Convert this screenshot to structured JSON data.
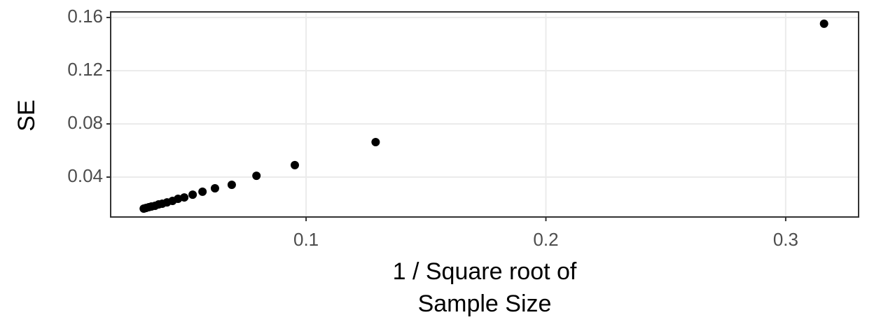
{
  "chart_data": {
    "type": "scatter",
    "xlabel": [
      "1 / Square root of",
      "Sample Size"
    ],
    "ylabel": "SE",
    "x": [
      0.316,
      0.129,
      0.0953,
      0.0793,
      0.069,
      0.062,
      0.0568,
      0.0527,
      0.0492,
      0.0466,
      0.0443,
      0.042,
      0.04,
      0.0385,
      0.037,
      0.0355,
      0.0344,
      0.0332,
      0.0323
    ],
    "values": [
      0.1553,
      0.0663,
      0.049,
      0.041,
      0.0342,
      0.0316,
      0.029,
      0.0268,
      0.0247,
      0.0237,
      0.0221,
      0.021,
      0.02,
      0.0195,
      0.0184,
      0.0179,
      0.0174,
      0.0168,
      0.0163
    ],
    "color": "#000000",
    "xlim": [
      0.0185,
      0.3304
    ],
    "ylim": [
      0.01,
      0.1642
    ],
    "xticks": [
      0.1,
      0.2,
      0.3
    ],
    "yticks": [
      0.04,
      0.08,
      0.12,
      0.16
    ],
    "grid": true
  }
}
